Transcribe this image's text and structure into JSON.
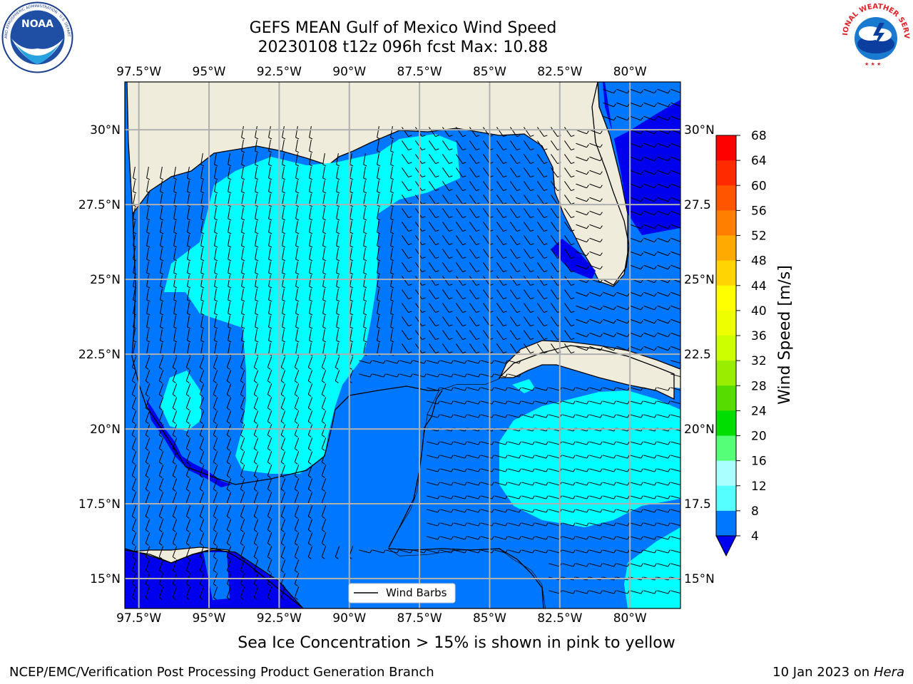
{
  "header": {
    "title_line1": "GEFS MEAN Gulf of Mexico Wind Speed",
    "title_line2": "20230108 t12z 096h fcst   Max: 10.88",
    "logo_left": "NOAA",
    "logo_left_ring": "NATIONAL OCEANIC AND ATMOSPHERIC ADMINISTRATION · U.S. DEPARTMENT OF COMMERCE",
    "logo_right_ring": "NATIONAL WEATHER SERVICE"
  },
  "map": {
    "lon_labels": [
      "97.5°W",
      "95°W",
      "92.5°W",
      "90°W",
      "87.5°W",
      "85°W",
      "82.5°W",
      "80°W"
    ],
    "lat_labels": [
      "30°N",
      "27.5°N",
      "25°N",
      "22.5°N",
      "20°N",
      "17.5°N",
      "15°N"
    ],
    "right_lat_labels": [
      "30°N",
      "27.5",
      "25°N",
      "22.5",
      "20°N",
      "17.5",
      "15°N"
    ],
    "lon_values": [
      -97.5,
      -95,
      -92.5,
      -90,
      -87.5,
      -85,
      -82.5,
      -80
    ],
    "lat_values": [
      30,
      27.5,
      25,
      22.5,
      20,
      17.5,
      15
    ],
    "extent": {
      "lon_min": -98,
      "lon_max": -78.2,
      "lat_min": 14,
      "lat_max": 31.6
    },
    "legend_label": "Wind Barbs",
    "colors": {
      "land": "#efecdc",
      "grid": "#b0b0b0"
    }
  },
  "colorbar": {
    "label": "Wind Speed [m/s]",
    "ticks": [
      "68",
      "64",
      "60",
      "56",
      "52",
      "48",
      "44",
      "40",
      "36",
      "32",
      "28",
      "24",
      "20",
      "16",
      "12",
      "8",
      "4"
    ],
    "colors": [
      "#ff0000",
      "#ff3300",
      "#ff6600",
      "#ff8800",
      "#ffaa00",
      "#ffcc00",
      "#ffee00",
      "#ffff00",
      "#eeff00",
      "#ccff00",
      "#99ee00",
      "#55dd00",
      "#00dd00",
      "#55ff77",
      "#88ffcc",
      "#aaffff",
      "#55ffff",
      "#00ffff",
      "#0077ff",
      "#0000ee"
    ]
  },
  "notes": {
    "sea_ice": "Sea Ice Concentration > 15% is shown in pink to yellow"
  },
  "footer": {
    "left": "NCEP/EMC/Verification Post Processing Product Generation Branch",
    "right_date": "10 Jan 2023 on ",
    "right_host": "Hera"
  }
}
